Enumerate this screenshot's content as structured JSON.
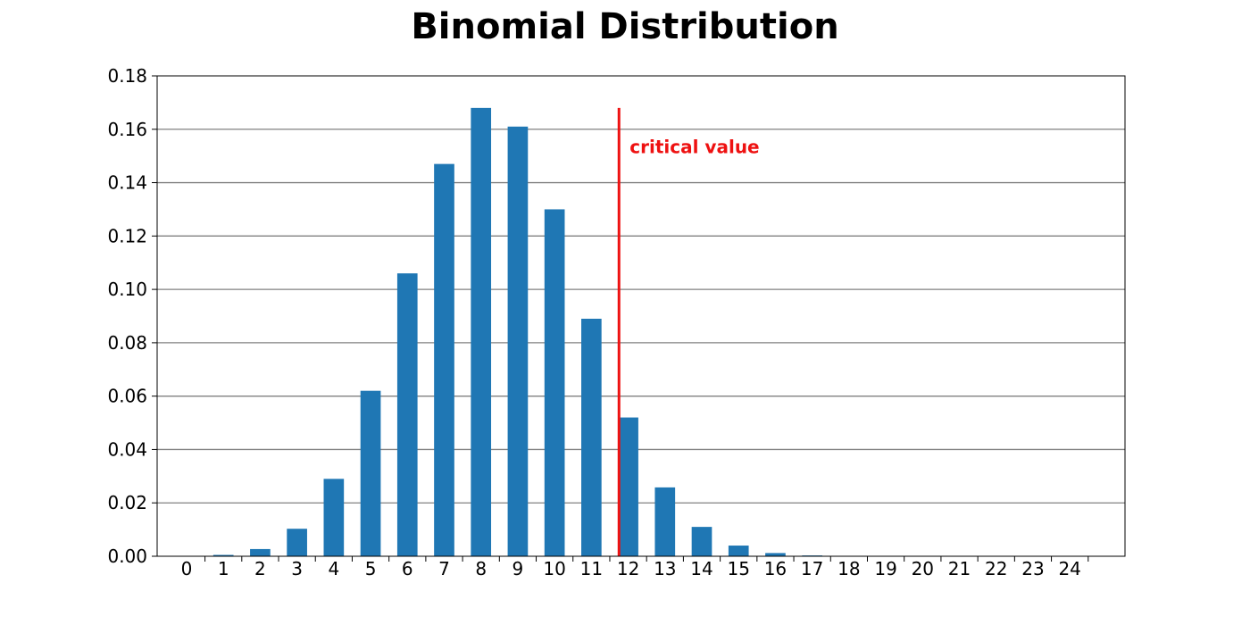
{
  "chart_data": {
    "type": "bar",
    "title": "Binomial Distribution",
    "xlabel": "",
    "ylabel": "",
    "categories": [
      "0",
      "1",
      "2",
      "3",
      "4",
      "5",
      "6",
      "7",
      "8",
      "9",
      "10",
      "11",
      "12",
      "13",
      "14",
      "15",
      "16",
      "17",
      "18",
      "19",
      "20",
      "21",
      "22",
      "23",
      "24"
    ],
    "values": [
      0.0001,
      0.0005,
      0.0027,
      0.0103,
      0.029,
      0.062,
      0.106,
      0.147,
      0.168,
      0.161,
      0.13,
      0.089,
      0.052,
      0.0258,
      0.011,
      0.004,
      0.0012,
      0.0003,
      0.0001,
      0,
      0,
      0,
      0,
      0,
      0
    ],
    "ylim": [
      0,
      0.18
    ],
    "yticks": [
      "0.00",
      "0.02",
      "0.04",
      "0.06",
      "0.08",
      "0.10",
      "0.12",
      "0.14",
      "0.16",
      "0.18"
    ],
    "grid": "horizontal",
    "bar_color": "#1f77b4",
    "critical_value": {
      "x": 11.75,
      "y_top": 0.168,
      "label": "critical value",
      "color": "#ee1111"
    }
  }
}
